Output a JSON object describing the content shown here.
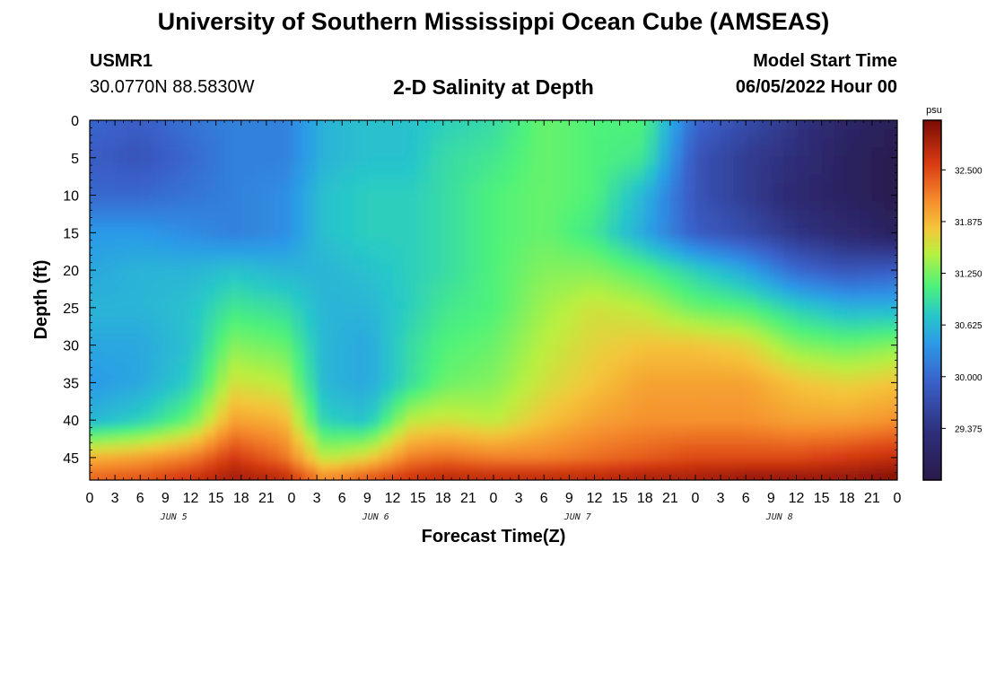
{
  "chart_data": {
    "type": "heatmap",
    "title": "University of Southern Mississippi Ocean Cube (AMSEAS)",
    "subtitle": "2-D Salinity at Depth",
    "station": {
      "id": "USMR1",
      "location": "30.0770N  88.5830W"
    },
    "model_start": {
      "label": "Model Start Time",
      "value": "06/05/2022 Hour 00"
    },
    "xlabel": "Forecast Time(Z)",
    "ylabel": "Depth (ft)",
    "x_range_hours": [
      0,
      96
    ],
    "y_range_ft": [
      0,
      48
    ],
    "x_tick_labels": [
      "0",
      "3",
      "6",
      "9",
      "12",
      "15",
      "18",
      "21",
      "0",
      "3",
      "6",
      "9",
      "12",
      "15",
      "18",
      "21",
      "0",
      "3",
      "6",
      "9",
      "12",
      "15",
      "18",
      "21",
      "0",
      "3",
      "6",
      "9",
      "12",
      "15",
      "18",
      "21",
      "0"
    ],
    "y_tick_labels": [
      "0",
      "5",
      "10",
      "15",
      "20",
      "25",
      "30",
      "35",
      "40",
      "45"
    ],
    "day_labels": [
      "JUN 5",
      "JUN 6",
      "JUN 7",
      "JUN 8"
    ],
    "colorbar": {
      "unit": "psu",
      "range": [
        28.75,
        33.1
      ],
      "tick_labels": [
        "32.500",
        "31.875",
        "31.250",
        "30.625",
        "30.000",
        "29.375"
      ]
    },
    "approx_salinity_grid": {
      "times_h": [
        0,
        6,
        12,
        17,
        23,
        28,
        33,
        38,
        42,
        48,
        54,
        60,
        66,
        72,
        78,
        84,
        90,
        96
      ],
      "depths_ft": [
        0,
        5,
        10,
        15,
        20,
        25,
        30,
        35,
        40,
        45,
        48
      ],
      "values": [
        [
          30.0,
          29.9,
          30.1,
          30.2,
          30.2,
          30.6,
          30.7,
          30.7,
          30.8,
          30.9,
          31.2,
          31.1,
          31.1,
          30.0,
          29.7,
          29.4,
          29.1,
          28.9
        ],
        [
          29.9,
          29.8,
          30.0,
          30.2,
          30.2,
          30.6,
          30.7,
          30.7,
          30.9,
          31.0,
          31.2,
          31.1,
          31.0,
          29.8,
          29.5,
          29.3,
          29.0,
          28.8
        ],
        [
          30.0,
          30.0,
          30.1,
          30.2,
          30.3,
          30.7,
          30.8,
          30.8,
          30.9,
          31.1,
          31.2,
          31.1,
          30.6,
          29.8,
          29.5,
          29.2,
          29.0,
          28.8
        ],
        [
          30.4,
          30.4,
          30.3,
          30.2,
          30.3,
          30.7,
          30.8,
          30.8,
          30.9,
          31.1,
          31.2,
          31.0,
          30.5,
          29.9,
          29.7,
          29.4,
          29.2,
          29.0
        ],
        [
          30.5,
          30.6,
          30.6,
          30.7,
          30.6,
          30.6,
          30.7,
          30.8,
          30.9,
          31.1,
          31.3,
          31.3,
          31.1,
          30.8,
          30.5,
          30.0,
          29.8,
          29.9
        ],
        [
          30.6,
          30.6,
          30.7,
          31.0,
          30.9,
          30.6,
          30.6,
          30.8,
          31.0,
          31.1,
          31.4,
          31.6,
          31.5,
          31.2,
          31.1,
          30.8,
          30.6,
          30.6
        ],
        [
          30.5,
          30.5,
          30.7,
          31.3,
          31.2,
          30.6,
          30.5,
          30.9,
          31.1,
          31.2,
          31.5,
          31.7,
          31.8,
          31.8,
          31.7,
          31.3,
          31.2,
          31.3
        ],
        [
          30.4,
          30.5,
          30.8,
          31.6,
          31.5,
          30.6,
          30.5,
          30.9,
          31.2,
          31.3,
          31.6,
          31.8,
          32.0,
          32.0,
          32.0,
          31.8,
          31.7,
          31.8
        ],
        [
          30.6,
          30.8,
          31.2,
          32.0,
          31.9,
          30.8,
          30.7,
          31.5,
          31.6,
          31.5,
          31.8,
          32.0,
          32.1,
          32.1,
          32.1,
          32.0,
          32.0,
          32.1
        ],
        [
          31.9,
          32.0,
          32.2,
          32.6,
          32.3,
          31.5,
          31.7,
          32.2,
          32.3,
          32.2,
          32.2,
          32.3,
          32.4,
          32.5,
          32.5,
          32.5,
          32.6,
          32.7
        ],
        [
          32.4,
          32.5,
          32.7,
          32.9,
          32.8,
          32.2,
          32.5,
          32.7,
          32.8,
          32.8,
          32.8,
          32.8,
          32.9,
          32.9,
          33.0,
          33.0,
          33.0,
          33.1
        ]
      ]
    }
  }
}
